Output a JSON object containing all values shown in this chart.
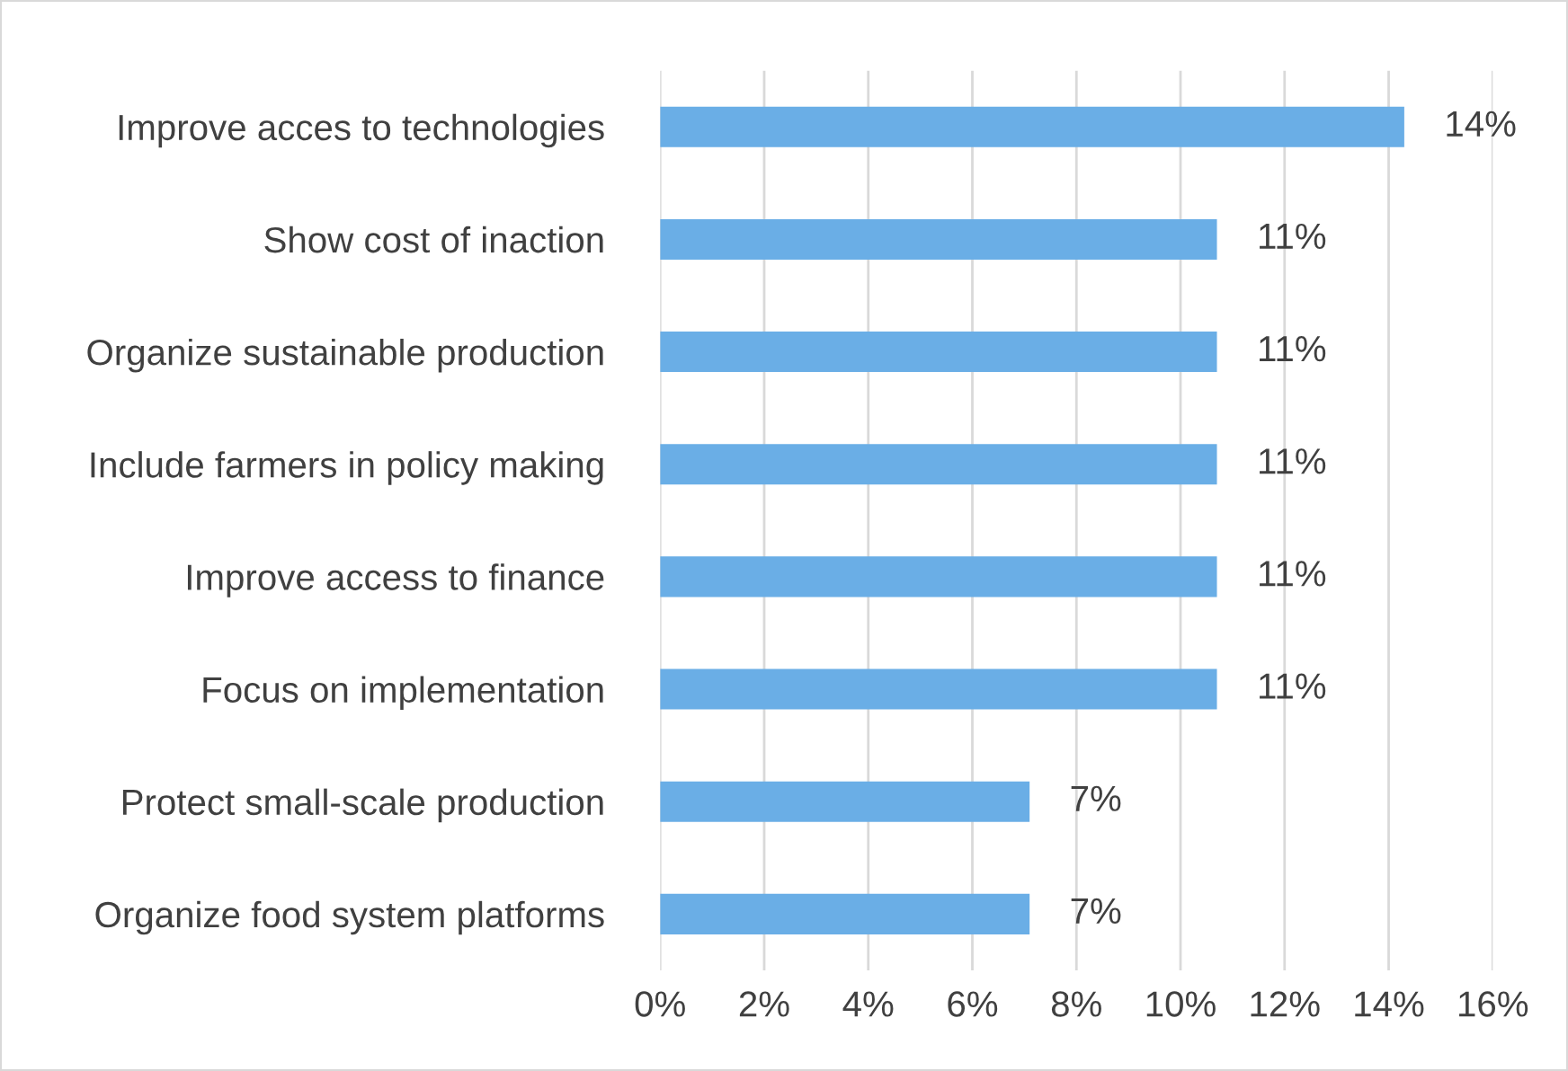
{
  "chart_data": {
    "type": "bar",
    "orientation": "horizontal",
    "categories": [
      "Improve acces to technologies",
      "Show cost of inaction",
      "Organize sustainable production",
      "Include farmers in policy making",
      "Improve access to finance",
      "Focus on implementation",
      "Protect small-scale production",
      "Organize food system platforms"
    ],
    "values": [
      14.3,
      10.7,
      10.7,
      10.7,
      10.7,
      10.7,
      7.1,
      7.1
    ],
    "value_labels": [
      "14%",
      "11%",
      "11%",
      "11%",
      "11%",
      "11%",
      "7%",
      "7%"
    ],
    "color": "#6aaee6",
    "xlim": [
      0,
      16
    ],
    "xticks": [
      {
        "value": 0,
        "label": "0%"
      },
      {
        "value": 2,
        "label": "2%"
      },
      {
        "value": 4,
        "label": "4%"
      },
      {
        "value": 6,
        "label": "6%"
      },
      {
        "value": 8,
        "label": "8%"
      },
      {
        "value": 10,
        "label": "10%"
      },
      {
        "value": 12,
        "label": "12%"
      },
      {
        "value": 14,
        "label": "14%"
      },
      {
        "value": 16,
        "label": "16%"
      }
    ],
    "grid": "x"
  }
}
